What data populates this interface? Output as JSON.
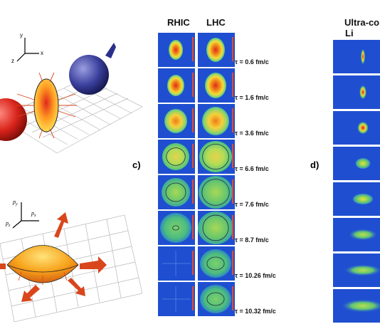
{
  "panels": {
    "c": {
      "label": "c)",
      "col_headers": [
        "RHIC",
        "LHC"
      ],
      "time_labels": [
        "τ = 0.6 fm/c",
        "τ = 1.6 fm/c",
        "τ = 3.6 fm/c",
        "τ = 6.6 fm/c",
        "τ = 7.6 fm/c",
        "τ = 8.7 fm/c",
        "τ = 10.26 fm/c",
        "τ = 10.32 fm/c"
      ]
    },
    "d": {
      "label": "d)",
      "title_line1": "Ultra-co",
      "title_line2": "Li atoms"
    }
  },
  "axes_top": {
    "x": "x",
    "y": "y",
    "z": "z"
  },
  "axes_bottom": {
    "x": "p",
    "x_sub": "x",
    "y": "p",
    "y_sub": "y",
    "z": "p",
    "z_sub": "z"
  },
  "colors": {
    "map_bg": "#1f4fd0",
    "nucleus_red": "#d8231a",
    "nucleus_blue": "#2a2f8c",
    "fireball": "#f5a21a",
    "arrow": "#d9461c"
  }
}
